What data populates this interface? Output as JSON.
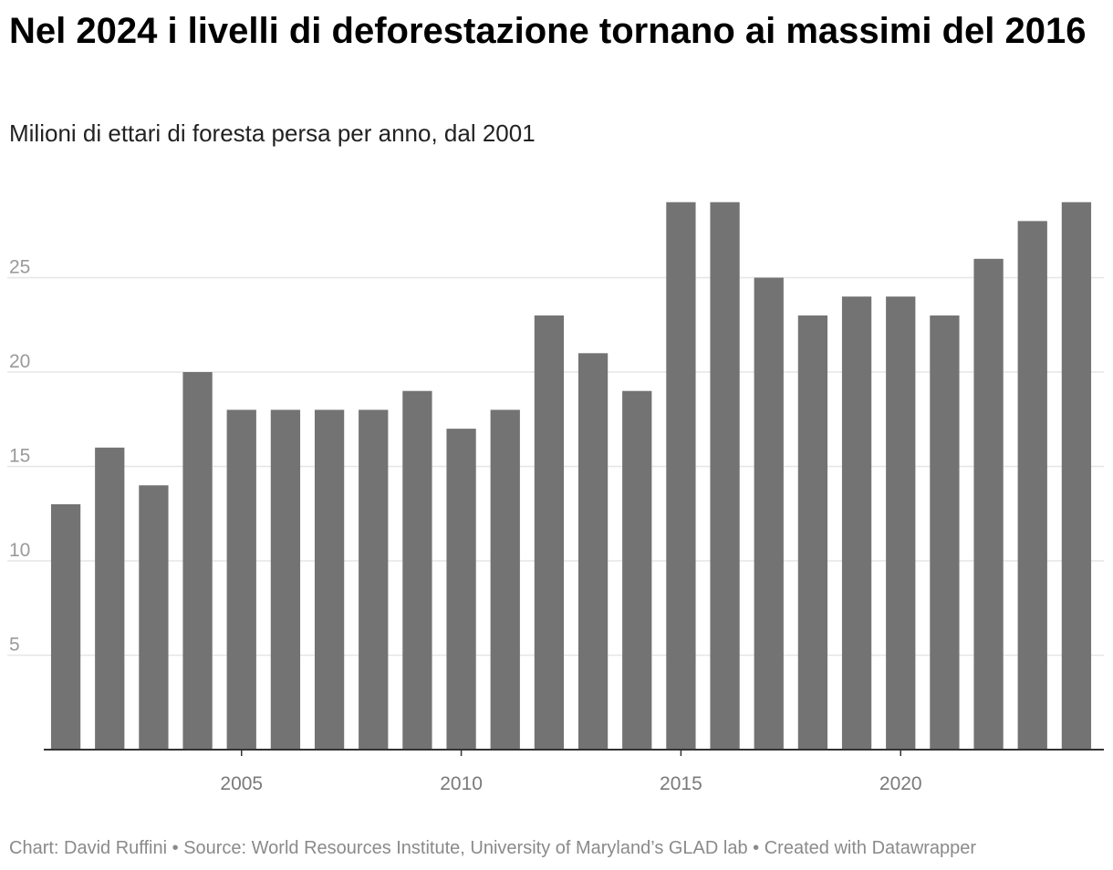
{
  "title": "Nel 2024 i livelli di deforestazione tornano ai massimi del 2016",
  "subtitle": "Milioni di ettari di foresta persa per anno, dal 2001",
  "footer": {
    "chart_credit": "Chart: David Ruffini",
    "separator": "•",
    "source": "Source: World Resources Institute, University of Maryland’s GLAD lab",
    "created_with": "Created with Datawrapper"
  },
  "chart_data": {
    "type": "bar",
    "title": "Nel 2024 i livelli di deforestazione tornano ai massimi del 2016",
    "subtitle": "Milioni di ettari di foresta persa per anno, dal 2001",
    "xlabel": "",
    "ylabel": "",
    "categories": [
      2001,
      2002,
      2003,
      2004,
      2005,
      2006,
      2007,
      2008,
      2009,
      2010,
      2011,
      2012,
      2013,
      2014,
      2015,
      2016,
      2017,
      2018,
      2019,
      2020,
      2021,
      2022,
      2023,
      2024
    ],
    "values": [
      13,
      16,
      14,
      20,
      18,
      18,
      18,
      18,
      19,
      17,
      18,
      23,
      21,
      19,
      29,
      29,
      25,
      23,
      24,
      24,
      23,
      26,
      28,
      29
    ],
    "ylim": [
      0,
      29
    ],
    "yticks": [
      5,
      10,
      15,
      20,
      25
    ],
    "xticks": [
      2005,
      2010,
      2015,
      2020
    ],
    "grid": true,
    "bar_color": "#737373",
    "grid_color": "#e6e6e6",
    "axis_color": "#333333"
  }
}
